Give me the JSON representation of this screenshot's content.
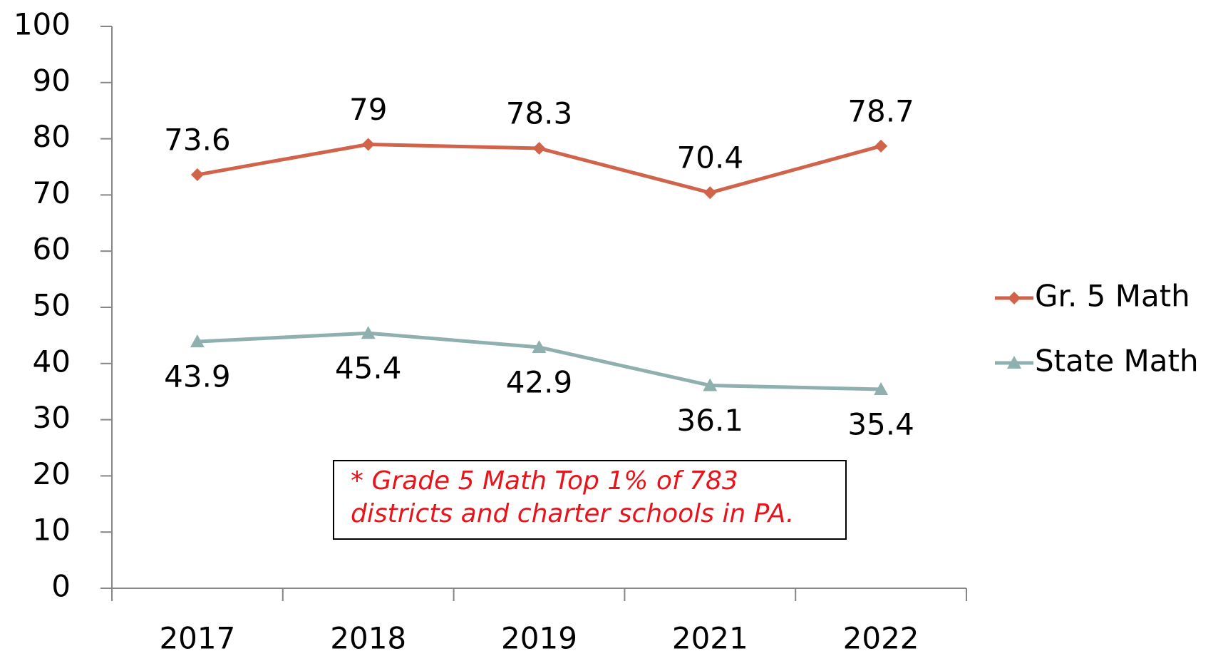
{
  "chart_data": {
    "type": "line",
    "categories": [
      "2017",
      "2018",
      "2019",
      "2021",
      "2022"
    ],
    "series": [
      {
        "name": "Gr. 5 Math",
        "color": "#d0634a",
        "marker": "diamond",
        "values": [
          73.6,
          79,
          78.3,
          70.4,
          78.7
        ]
      },
      {
        "name": "State Math",
        "color": "#8fb0ae",
        "marker": "triangle",
        "values": [
          43.9,
          45.4,
          42.9,
          36.1,
          35.4
        ]
      }
    ],
    "ylim": [
      0,
      100
    ],
    "yticks": [
      0,
      10,
      20,
      30,
      40,
      50,
      60,
      70,
      80,
      90,
      100
    ],
    "grid": false,
    "legend": "right",
    "annotation": [
      "* Grade 5 Math Top 1% of 783",
      "districts and charter schools in PA."
    ]
  }
}
